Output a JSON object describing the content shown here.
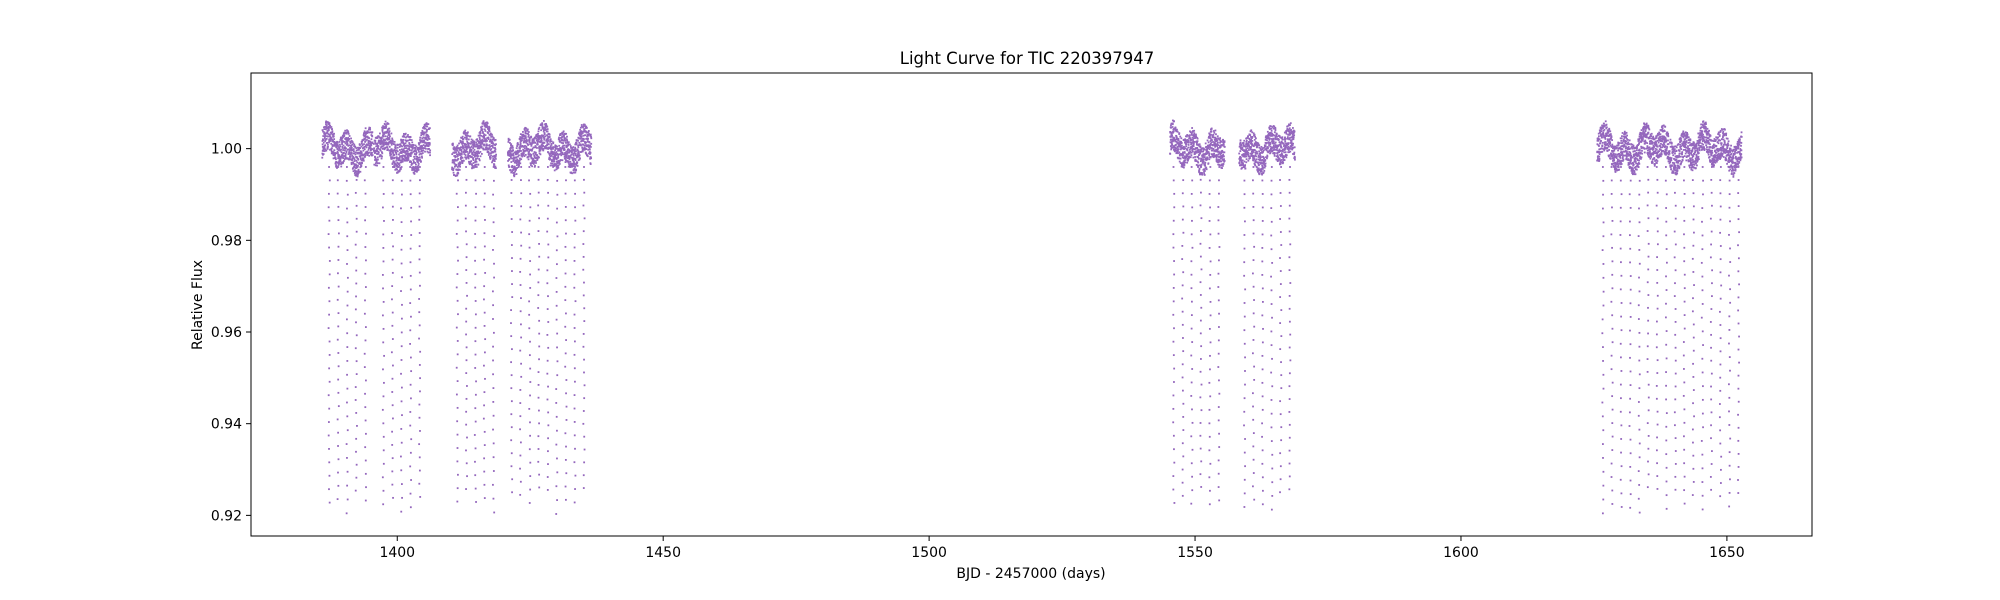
{
  "chart_data": {
    "type": "scatter",
    "title": "Light Curve for TIC 220397947",
    "xlabel": "BJD - 2457000 (days)",
    "ylabel": "Relative Flux",
    "xlim": [
      1372.5,
      1666
    ],
    "ylim": [
      0.9155,
      1.0165
    ],
    "x_ticks": [
      "1400",
      "1450",
      "1500",
      "1550",
      "1600",
      "1650"
    ],
    "y_ticks": [
      "0.92",
      "0.94",
      "0.96",
      "0.98",
      "1.00"
    ],
    "grid": false,
    "legend": "none",
    "marker_color": "#9467bd",
    "baseline_flux": 1.0,
    "eclipse_min_flux": 0.922,
    "segments": [
      {
        "x_start": 1385.9,
        "x_end": 1395.4
      },
      {
        "x_start": 1395.6,
        "x_end": 1406.2
      },
      {
        "x_start": 1410.3,
        "x_end": 1418.6
      },
      {
        "x_start": 1420.8,
        "x_end": 1436.5
      },
      {
        "x_start": 1545.3,
        "x_end": 1555.6
      },
      {
        "x_start": 1558.3,
        "x_end": 1568.8
      },
      {
        "x_start": 1625.6,
        "x_end": 1652.8
      }
    ],
    "series": [
      {
        "values_note_x": "eclipse dips, days",
        "dips_x": [
          1387.2,
          1388.9,
          1390.6,
          1392.3,
          1394.0,
          1397.4,
          1399.1,
          1400.8,
          1402.5,
          1404.2,
          1411.3,
          1413.0,
          1414.7,
          1416.4,
          1418.1,
          1421.5,
          1423.2,
          1424.9,
          1426.6,
          1428.3,
          1430.0,
          1431.7,
          1433.4,
          1435.1,
          1546.0,
          1547.7,
          1549.4,
          1551.1,
          1552.8,
          1554.5,
          1559.3,
          1561.0,
          1562.7,
          1564.4,
          1566.1,
          1567.8,
          1626.7,
          1628.4,
          1630.1,
          1631.8,
          1633.5,
          1635.2,
          1636.9,
          1638.6,
          1640.3,
          1642.0,
          1643.7,
          1645.4,
          1647.1,
          1648.8,
          1650.5,
          1652.2
        ]
      }
    ]
  }
}
